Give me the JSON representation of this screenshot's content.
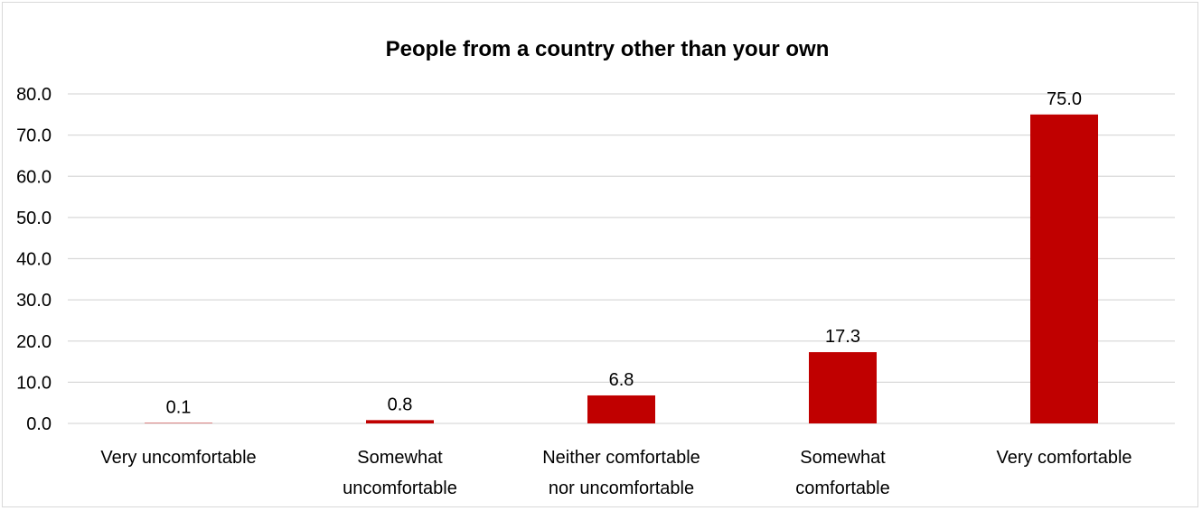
{
  "chart_data": {
    "type": "bar",
    "title": "People from a country other than your own",
    "xlabel": "",
    "ylabel": "",
    "categories": [
      [
        "Very uncomfortable"
      ],
      [
        "Somewhat",
        "uncomfortable"
      ],
      [
        "Neither comfortable",
        "nor uncomfortable"
      ],
      [
        "Somewhat",
        "comfortable"
      ],
      [
        "Very comfortable"
      ]
    ],
    "values": [
      0.1,
      0.8,
      6.8,
      17.3,
      75.0
    ],
    "data_labels": [
      "0.1",
      "0.8",
      "6.8",
      "17.3",
      "75.0"
    ],
    "ylim": [
      0,
      80
    ],
    "yticks": [
      "0.0",
      "10.0",
      "20.0",
      "30.0",
      "40.0",
      "50.0",
      "60.0",
      "70.0",
      "80.0"
    ],
    "grid": true,
    "legend": "none",
    "bar_color": "#c00000",
    "grid_color": "#d9d9d9"
  }
}
